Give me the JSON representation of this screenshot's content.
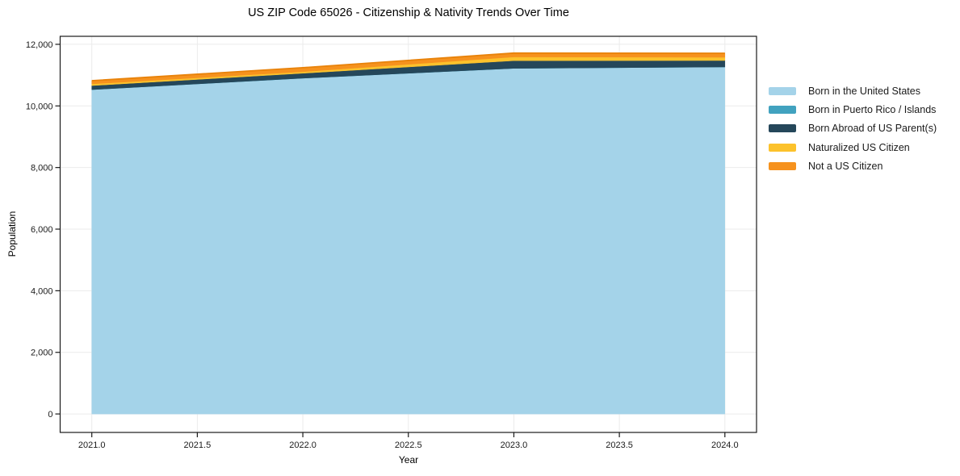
{
  "chart_data": {
    "type": "area",
    "stacked": true,
    "title": "US ZIP Code 65026 - Citizenship & Nativity Trends Over Time",
    "xlabel": "Year",
    "ylabel": "Population",
    "x": [
      2021,
      2022,
      2023,
      2024
    ],
    "series": [
      {
        "name": "Born in the United States",
        "color": "#a4d3e9",
        "values": [
          10530,
          10900,
          11220,
          11265
        ]
      },
      {
        "name": "Born in Puerto Rico / Islands",
        "color": "#41a2bf",
        "values": [
          0,
          0,
          0,
          0
        ]
      },
      {
        "name": "Born Abroad of US Parent(s)",
        "color": "#25475a",
        "values": [
          130,
          160,
          250,
          210
        ]
      },
      {
        "name": "Naturalized US Citizen",
        "color": "#fcc22c",
        "values": [
          55,
          50,
          120,
          105
        ]
      },
      {
        "name": "Not a US Citizen",
        "color": "#f6921e",
        "values": [
          105,
          130,
          125,
          130
        ]
      }
    ],
    "stack_totals": [
      10820,
      11240,
      11715,
      11710
    ],
    "x_ticks": [
      {
        "v": 2021.0,
        "label": "2021.0"
      },
      {
        "v": 2021.5,
        "label": "2021.5"
      },
      {
        "v": 2022.0,
        "label": "2022.0"
      },
      {
        "v": 2022.5,
        "label": "2022.5"
      },
      {
        "v": 2023.0,
        "label": "2023.0"
      },
      {
        "v": 2023.5,
        "label": "2023.5"
      },
      {
        "v": 2024.0,
        "label": "2024.0"
      }
    ],
    "y_ticks": [
      {
        "v": 0,
        "label": "0"
      },
      {
        "v": 2000,
        "label": "2,000"
      },
      {
        "v": 4000,
        "label": "4,000"
      },
      {
        "v": 6000,
        "label": "6,000"
      },
      {
        "v": 8000,
        "label": "8,000"
      },
      {
        "v": 10000,
        "label": "10,000"
      },
      {
        "v": 12000,
        "label": "12,000"
      }
    ],
    "xlim": [
      2020.85,
      2024.15
    ],
    "ylim": [
      -600,
      12260
    ],
    "grid": true,
    "legend_position": "right outside",
    "colors": {
      "grid": "#ebebeb",
      "spine": "#1a1a1a",
      "tick": "#1a1a1a",
      "background": "#ffffff",
      "total_top_edge": "#e8820a"
    }
  }
}
